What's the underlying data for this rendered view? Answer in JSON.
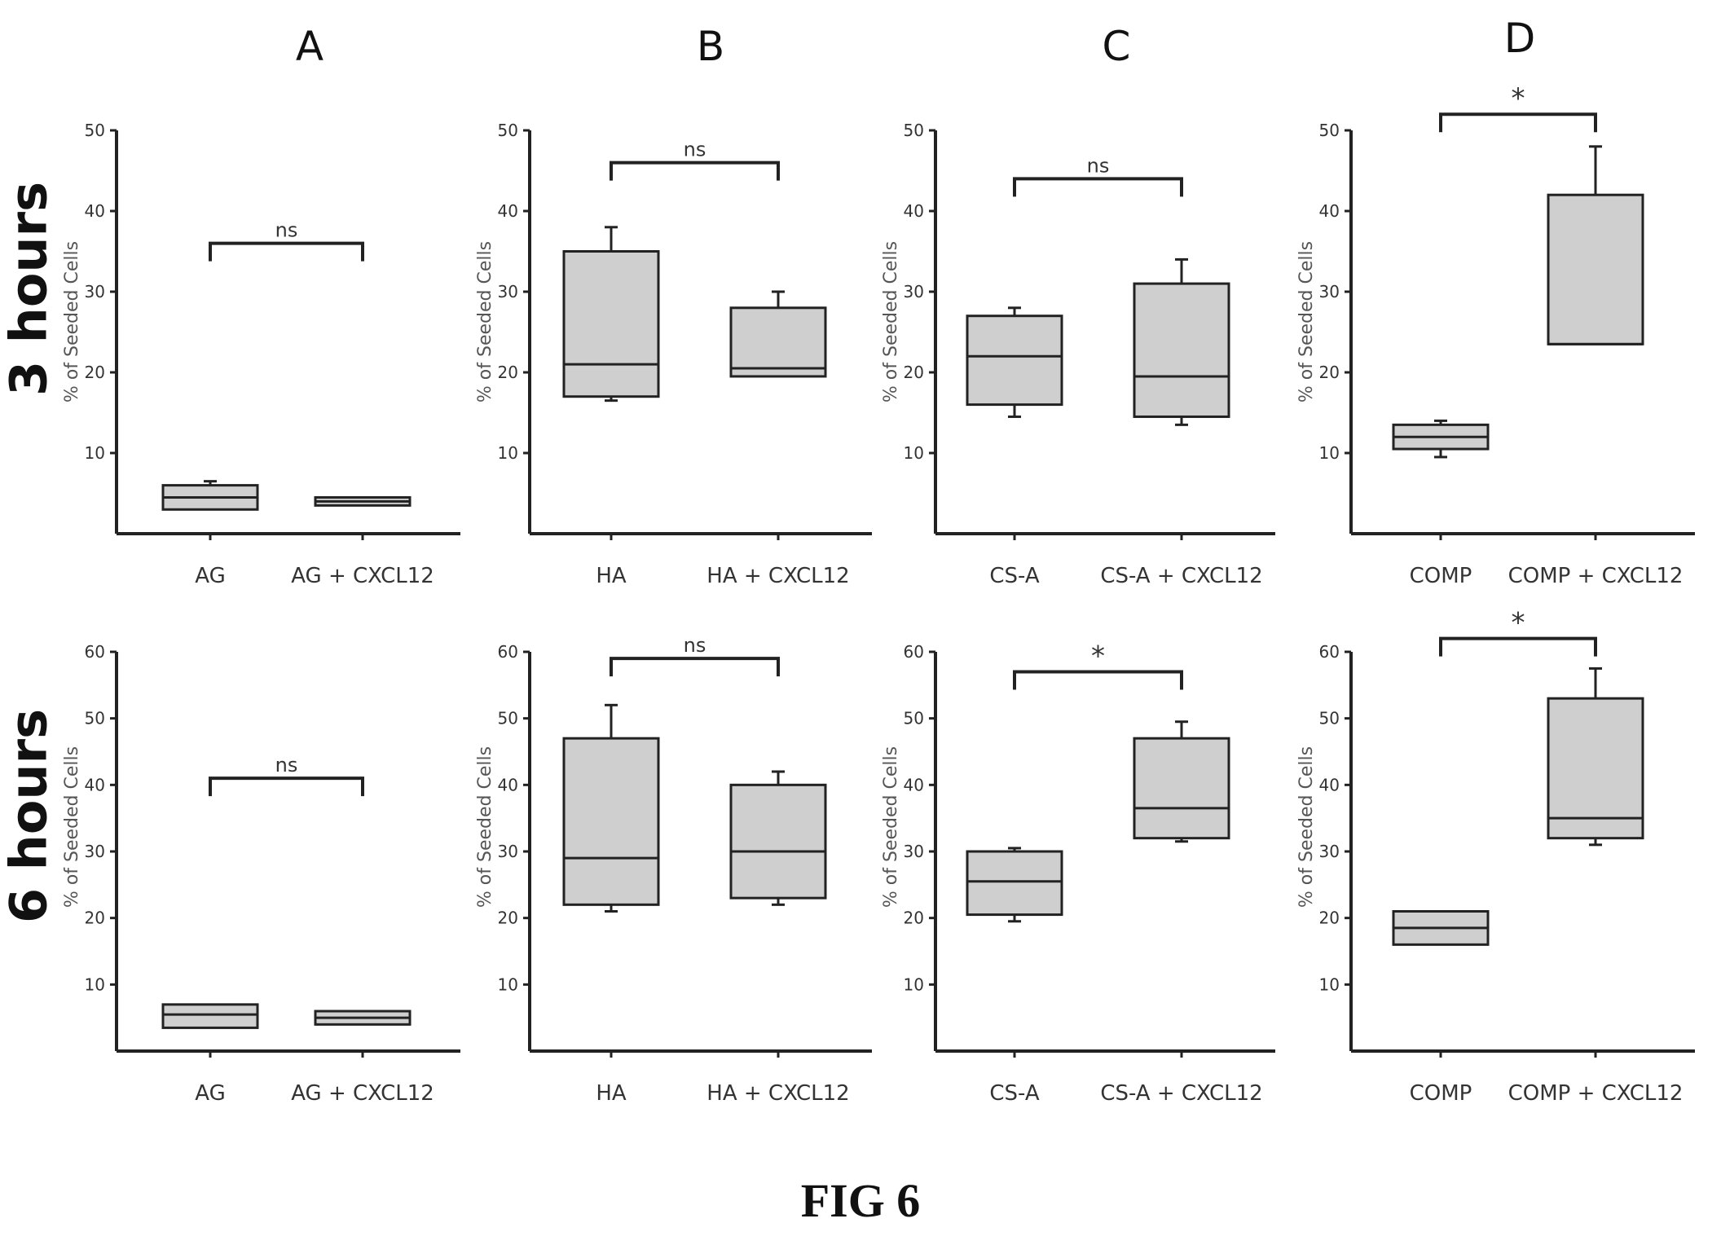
{
  "column_labels": [
    "A",
    "B",
    "C",
    "D"
  ],
  "row_labels": [
    "3 hours",
    "6 hours"
  ],
  "figure_caption": "FIG 6",
  "style": {
    "box_fill": "#cfcfcf",
    "axis_color": "#222222",
    "text_color": "#333333"
  },
  "chart_data": [
    {
      "type": "box",
      "panel": "A",
      "time": "3 hours",
      "ylabel": "% of Seeded Cells",
      "ylim": [
        0,
        50
      ],
      "yticks": [
        10,
        20,
        30,
        40,
        50
      ],
      "categories": [
        "AG",
        "AG + CXCL12"
      ],
      "boxes": [
        {
          "whisker_low": 3,
          "q1": 3,
          "median": 4.5,
          "q3": 6,
          "whisker_high": 6.5
        },
        {
          "whisker_low": 3.5,
          "q1": 3.5,
          "median": 4,
          "q3": 4.5,
          "whisker_high": 4.5
        }
      ],
      "significance": {
        "label": "ns",
        "level": 36
      }
    },
    {
      "type": "box",
      "panel": "B",
      "time": "3 hours",
      "ylabel": "% of Seeded Cells",
      "ylim": [
        0,
        50
      ],
      "yticks": [
        10,
        20,
        30,
        40,
        50
      ],
      "categories": [
        "HA",
        "HA + CXCL12"
      ],
      "boxes": [
        {
          "whisker_low": 16.5,
          "q1": 17,
          "median": 21,
          "q3": 35,
          "whisker_high": 38
        },
        {
          "whisker_low": 19.5,
          "q1": 19.5,
          "median": 20.5,
          "q3": 28,
          "whisker_high": 30
        }
      ],
      "significance": {
        "label": "ns",
        "level": 46
      }
    },
    {
      "type": "box",
      "panel": "C",
      "time": "3 hours",
      "ylabel": "% of Seeded Cells",
      "ylim": [
        0,
        50
      ],
      "yticks": [
        10,
        20,
        30,
        40,
        50
      ],
      "categories": [
        "CS-A",
        "CS-A + CXCL12"
      ],
      "boxes": [
        {
          "whisker_low": 14.5,
          "q1": 16,
          "median": 22,
          "q3": 27,
          "whisker_high": 28
        },
        {
          "whisker_low": 13.5,
          "q1": 14.5,
          "median": 19.5,
          "q3": 31,
          "whisker_high": 34
        }
      ],
      "significance": {
        "label": "ns",
        "level": 44
      }
    },
    {
      "type": "box",
      "panel": "D",
      "time": "3 hours",
      "ylabel": "% of Seeded Cells",
      "ylim": [
        0,
        50
      ],
      "yticks": [
        10,
        20,
        30,
        40,
        50
      ],
      "categories": [
        "COMP",
        "COMP + CXCL12"
      ],
      "boxes": [
        {
          "whisker_low": 9.5,
          "q1": 10.5,
          "median": 12,
          "q3": 13.5,
          "whisker_high": 14
        },
        {
          "whisker_low": 23.5,
          "q1": 23.5,
          "median": 23.5,
          "q3": 42,
          "whisker_high": 48
        }
      ],
      "significance": {
        "label": "*",
        "level": 52
      }
    },
    {
      "type": "box",
      "panel": "A",
      "time": "6 hours",
      "ylabel": "% of Seeded Cells",
      "ylim": [
        0,
        60
      ],
      "yticks": [
        10,
        20,
        30,
        40,
        50,
        60
      ],
      "categories": [
        "AG",
        "AG + CXCL12"
      ],
      "boxes": [
        {
          "whisker_low": 3.5,
          "q1": 3.5,
          "median": 5.5,
          "q3": 7,
          "whisker_high": 7
        },
        {
          "whisker_low": 4,
          "q1": 4,
          "median": 5,
          "q3": 6,
          "whisker_high": 6
        }
      ],
      "significance": {
        "label": "ns",
        "level": 41
      }
    },
    {
      "type": "box",
      "panel": "B",
      "time": "6 hours",
      "ylabel": "% of Seeded Cells",
      "ylim": [
        0,
        60
      ],
      "yticks": [
        10,
        20,
        30,
        40,
        50,
        60
      ],
      "categories": [
        "HA",
        "HA + CXCL12"
      ],
      "boxes": [
        {
          "whisker_low": 21,
          "q1": 22,
          "median": 29,
          "q3": 47,
          "whisker_high": 52
        },
        {
          "whisker_low": 22,
          "q1": 23,
          "median": 30,
          "q3": 40,
          "whisker_high": 42
        }
      ],
      "significance": {
        "label": "ns",
        "level": 59
      }
    },
    {
      "type": "box",
      "panel": "C",
      "time": "6 hours",
      "ylabel": "% of Seeded Cells",
      "ylim": [
        0,
        60
      ],
      "yticks": [
        10,
        20,
        30,
        40,
        50,
        60
      ],
      "categories": [
        "CS-A",
        "CS-A + CXCL12"
      ],
      "boxes": [
        {
          "whisker_low": 19.5,
          "q1": 20.5,
          "median": 25.5,
          "q3": 30,
          "whisker_high": 30.5
        },
        {
          "whisker_low": 31.5,
          "q1": 32,
          "median": 36.5,
          "q3": 47,
          "whisker_high": 49.5
        }
      ],
      "significance": {
        "label": "*",
        "level": 57
      }
    },
    {
      "type": "box",
      "panel": "D",
      "time": "6 hours",
      "ylabel": "% of Seeded Cells",
      "ylim": [
        0,
        60
      ],
      "yticks": [
        10,
        20,
        30,
        40,
        50,
        60
      ],
      "categories": [
        "COMP",
        "COMP + CXCL12"
      ],
      "boxes": [
        {
          "whisker_low": 16,
          "q1": 16,
          "median": 18.5,
          "q3": 21,
          "whisker_high": 21
        },
        {
          "whisker_low": 31,
          "q1": 32,
          "median": 35,
          "q3": 53,
          "whisker_high": 57.5
        }
      ],
      "significance": {
        "label": "*",
        "level": 62
      }
    }
  ]
}
